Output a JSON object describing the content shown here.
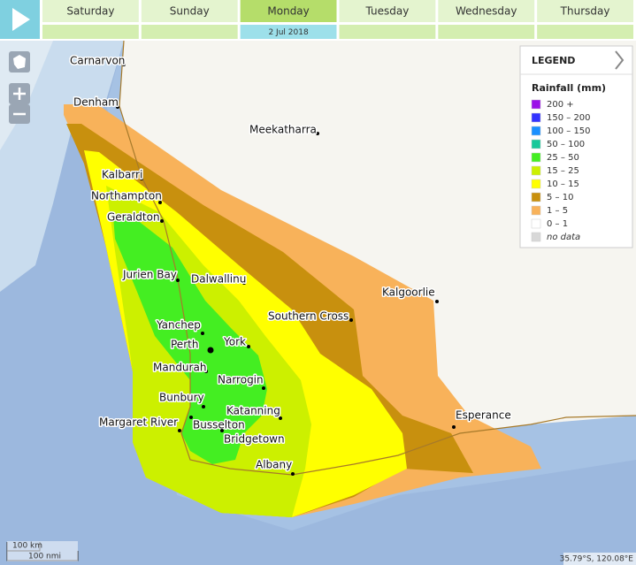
{
  "header": {
    "days": [
      "Saturday",
      "Sunday",
      "Monday",
      "Tuesday",
      "Wednesday",
      "Thursday"
    ],
    "selected_day": "Monday",
    "date": "2 Jul 2018"
  },
  "legend": {
    "title": "LEGEND",
    "subtitle": "Rainfall (mm)",
    "items": [
      {
        "label": "200 +",
        "color": "#9b10e8"
      },
      {
        "label": "150 – 200",
        "color": "#3333ff"
      },
      {
        "label": "100 – 150",
        "color": "#1a90ff"
      },
      {
        "label": "50 – 100",
        "color": "#16c89a"
      },
      {
        "label": "25 – 50",
        "color": "#44ee22"
      },
      {
        "label": "15 – 25",
        "color": "#ccf000"
      },
      {
        "label": "10 – 15",
        "color": "#ffff00"
      },
      {
        "label": "5 – 10",
        "color": "#c8900e"
      },
      {
        "label": "1 – 5",
        "color": "#f8b25a"
      },
      {
        "label": "0 – 1",
        "color": "#ffffff"
      },
      {
        "label": "no data",
        "color": "#d8d8d8"
      }
    ]
  },
  "places": [
    "Carnarvon",
    "Denham",
    "Meekatharra",
    "Kalbarri",
    "Northampton",
    "Geraldton",
    "Jurien Bay",
    "Dalwallinu",
    "Kalgoorlie",
    "Southern Cross",
    "Yanchep",
    "Perth",
    "York",
    "Mandurah",
    "Narrogin",
    "Bunbury",
    "Katanning",
    "Margaret River",
    "Busselton",
    "Bridgetown",
    "Albany",
    "Esperance"
  ],
  "scale": {
    "km": "100 km",
    "nmi": "100 nmi"
  },
  "coordinates": "35.79°S, 120.08°E"
}
